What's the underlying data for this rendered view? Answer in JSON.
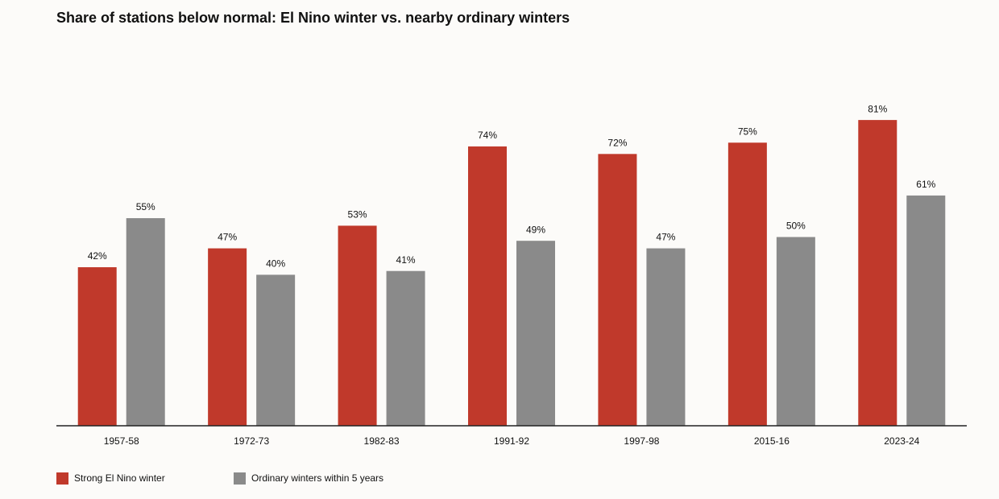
{
  "chart_data": {
    "type": "bar",
    "title": "Share of stations below normal: El Nino winter vs. nearby ordinary winters",
    "categories": [
      "1957-58",
      "1972-73",
      "1982-83",
      "1991-92",
      "1997-98",
      "2015-16",
      "2023-24"
    ],
    "series": [
      {
        "name": "Strong El Nino winter",
        "color": "#c0392b",
        "values": [
          42,
          47,
          53,
          74,
          72,
          75,
          81
        ],
        "value_labels": [
          "42%",
          "47%",
          "53%",
          "74%",
          "72%",
          "75%",
          "81%"
        ]
      },
      {
        "name": "Ordinary winters within 5 years",
        "color": "#8a8a8a",
        "values": [
          55,
          40,
          41,
          49,
          47,
          50,
          61
        ],
        "value_labels": [
          "55%",
          "40%",
          "41%",
          "49%",
          "47%",
          "50%",
          "61%"
        ]
      }
    ],
    "legend": "bottom-left"
  }
}
